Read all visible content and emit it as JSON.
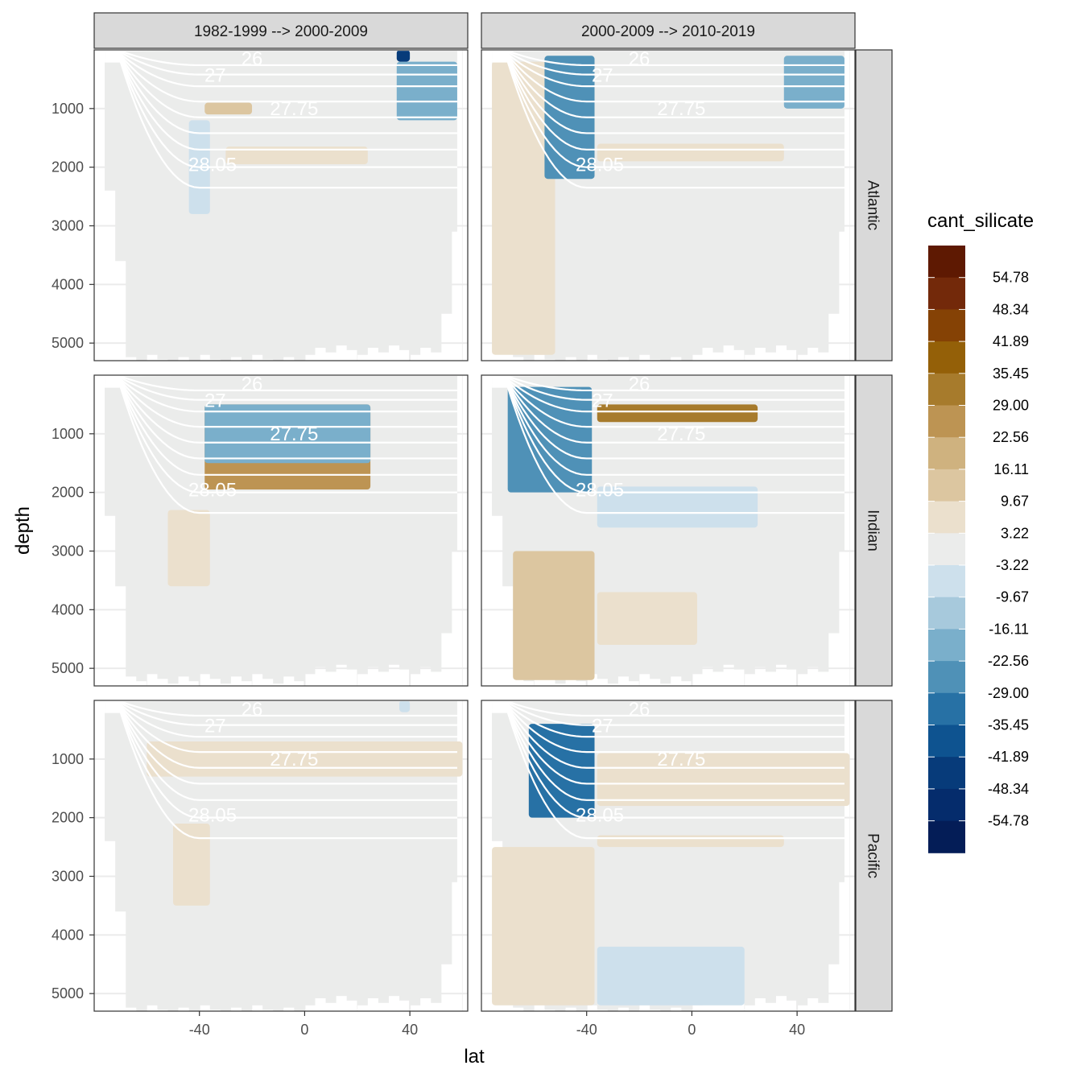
{
  "chart_data": {
    "type": "heatmap",
    "title": "",
    "xlabel": "lat",
    "ylabel": "depth",
    "xlim": [
      -80,
      62
    ],
    "ylim": [
      5300,
      0
    ],
    "x_ticks": [
      -40,
      0,
      40
    ],
    "x_tick_labels": [
      "-40",
      "0",
      "40"
    ],
    "y_ticks": [
      1000,
      2000,
      3000,
      4000,
      5000
    ],
    "y_tick_labels": [
      "1000",
      "2000",
      "3000",
      "4000",
      "5000"
    ],
    "col_facets": [
      "1982-1999 --> 2000-2009",
      "2000-2009 --> 2010-2019"
    ],
    "row_facets": [
      "Atlantic",
      "Indian",
      "Pacific"
    ],
    "contour_labels": [
      "26",
      "27",
      "27.75",
      "28.05"
    ],
    "legend": {
      "title": "cant_silicate",
      "labels": [
        "54.78",
        "48.34",
        "41.89",
        "35.45",
        "29.00",
        "22.56",
        "16.11",
        "9.67",
        "3.22",
        "-3.22",
        "-9.67",
        "-16.11",
        "-22.56",
        "-29.00",
        "-35.45",
        "-41.89",
        "-48.34",
        "-54.78"
      ],
      "colors": [
        "#5e1902",
        "#73290a",
        "#854205",
        "#946008",
        "#a77b2c",
        "#bd9453",
        "#cfb27f",
        "#dcc6a0",
        "#ebe0cd",
        "#ebeceb",
        "#cde0ec",
        "#a7c9dc",
        "#7aafcb",
        "#4f91b7",
        "#2771a5",
        "#0e5390",
        "#073b7a",
        "#052c6c",
        "#041d57"
      ]
    },
    "panels": [
      {
        "facet_col": 0,
        "facet_row": 0,
        "basin": "Atlantic",
        "floor_max_depth": 5200,
        "features": [
          {
            "lat": [
              -44,
              -40,
              -36
            ],
            "depth": [
              1200,
              2800
            ],
            "value": -6.4,
            "color_index": 10
          },
          {
            "lat": [
              -38,
              -20
            ],
            "depth": [
              900,
              1100
            ],
            "value": 12.9,
            "color_index": 7
          },
          {
            "lat": [
              -30,
              24
            ],
            "depth": [
              1650,
              1950
            ],
            "value": 6.4,
            "color_index": 8
          },
          {
            "lat": [
              35,
              58
            ],
            "depth": [
              200,
              1200
            ],
            "value": -19.3,
            "color_index": 12
          },
          {
            "lat": [
              35,
              40
            ],
            "depth": [
              0,
              200
            ],
            "value": -45.1,
            "color_index": 16
          }
        ]
      },
      {
        "facet_col": 1,
        "facet_row": 0,
        "basin": "Atlantic",
        "floor_max_depth": 5200,
        "features": [
          {
            "lat": [
              -76,
              -52
            ],
            "depth": [
              200,
              5200
            ],
            "value": 6.4,
            "color_index": 8
          },
          {
            "lat": [
              -56,
              -37
            ],
            "depth": [
              100,
              2200
            ],
            "value": -25.8,
            "color_index": 13
          },
          {
            "lat": [
              -36,
              35
            ],
            "depth": [
              1600,
              1900
            ],
            "value": 6.4,
            "color_index": 8
          },
          {
            "lat": [
              35,
              58
            ],
            "depth": [
              100,
              1000
            ],
            "value": -19.3,
            "color_index": 12
          }
        ]
      },
      {
        "facet_col": 0,
        "facet_row": 1,
        "basin": "Indian",
        "floor_max_depth": 5100,
        "features": [
          {
            "lat": [
              -38,
              25
            ],
            "depth": [
              500,
              1950
            ],
            "value": 25.8,
            "color_index": 5
          },
          {
            "lat": [
              -38,
              25
            ],
            "depth": [
              500,
              1500
            ],
            "value": -19.3,
            "color_index": 12
          },
          {
            "lat": [
              -52,
              -36
            ],
            "depth": [
              2300,
              3600
            ],
            "value": 6.4,
            "color_index": 8
          }
        ]
      },
      {
        "facet_col": 1,
        "facet_row": 1,
        "basin": "Indian",
        "floor_max_depth": 5100,
        "features": [
          {
            "lat": [
              -70,
              -38
            ],
            "depth": [
              200,
              2000
            ],
            "value": -25.8,
            "color_index": 13
          },
          {
            "lat": [
              -36,
              25
            ],
            "depth": [
              500,
              800
            ],
            "value": 32.2,
            "color_index": 4
          },
          {
            "lat": [
              -36,
              25
            ],
            "depth": [
              1900,
              2600
            ],
            "value": -6.4,
            "color_index": 10
          },
          {
            "lat": [
              -68,
              -37
            ],
            "depth": [
              3000,
              5200
            ],
            "value": 12.9,
            "color_index": 7
          },
          {
            "lat": [
              -36,
              2
            ],
            "depth": [
              3700,
              4600
            ],
            "value": 6.4,
            "color_index": 8
          }
        ]
      },
      {
        "facet_col": 0,
        "facet_row": 2,
        "basin": "Pacific",
        "floor_max_depth": 5200,
        "features": [
          {
            "lat": [
              -60,
              60
            ],
            "depth": [
              700,
              1300
            ],
            "value": 6.4,
            "color_index": 8
          },
          {
            "lat": [
              -50,
              -36
            ],
            "depth": [
              2100,
              3500
            ],
            "value": 6.4,
            "color_index": 8
          },
          {
            "lat": [
              36,
              40
            ],
            "depth": [
              0,
              200
            ],
            "value": -6.4,
            "color_index": 10
          }
        ]
      },
      {
        "facet_col": 1,
        "facet_row": 2,
        "basin": "Pacific",
        "floor_max_depth": 5200,
        "features": [
          {
            "lat": [
              -62,
              -37
            ],
            "depth": [
              400,
              2000
            ],
            "value": -32.2,
            "color_index": 14
          },
          {
            "lat": [
              -36,
              60
            ],
            "depth": [
              900,
              1800
            ],
            "value": 6.4,
            "color_index": 8
          },
          {
            "lat": [
              -36,
              35
            ],
            "depth": [
              2300,
              2500
            ],
            "value": 6.4,
            "color_index": 8
          },
          {
            "lat": [
              -76,
              -37
            ],
            "depth": [
              2500,
              5200
            ],
            "value": 6.4,
            "color_index": 8
          },
          {
            "lat": [
              -36,
              20
            ],
            "depth": [
              4200,
              5200
            ],
            "value": -6.4,
            "color_index": 10
          }
        ]
      }
    ]
  }
}
